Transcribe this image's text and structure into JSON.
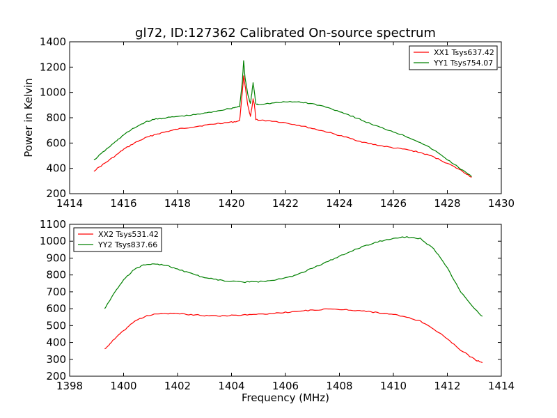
{
  "chart_data": [
    {
      "type": "line",
      "title": "gl72, ID:127362 Calibrated On-source spectrum",
      "xlabel": "",
      "ylabel": "Power in Kelvin",
      "xlim": [
        1414,
        1430
      ],
      "ylim": [
        200,
        1400
      ],
      "xticks": [
        "1414",
        "1416",
        "1418",
        "1420",
        "1422",
        "1424",
        "1426",
        "1428",
        "1430"
      ],
      "yticks": [
        "200",
        "400",
        "600",
        "800",
        "1000",
        "1200",
        "1400"
      ],
      "grid": false,
      "legend_position": "top-right",
      "series": [
        {
          "name": "XX1 Tsys637.42",
          "color": "#ff0000",
          "x": [
            1414.9,
            1415.3,
            1415.7,
            1416.0,
            1416.4,
            1416.8,
            1417.2,
            1417.6,
            1418.0,
            1418.5,
            1419.0,
            1419.5,
            1420.0,
            1420.3,
            1420.4,
            1420.45,
            1420.5,
            1420.6,
            1420.7,
            1420.75,
            1420.8,
            1420.85,
            1420.9,
            1421.0,
            1421.5,
            1422.0,
            1422.5,
            1423.0,
            1423.5,
            1424.0,
            1424.5,
            1425.0,
            1425.5,
            1426.0,
            1426.5,
            1427.0,
            1427.5,
            1428.0,
            1428.5,
            1428.9
          ],
          "values": [
            380,
            440,
            500,
            550,
            600,
            640,
            670,
            690,
            710,
            725,
            740,
            755,
            765,
            775,
            1000,
            1130,
            1060,
            900,
            810,
            870,
            950,
            900,
            790,
            780,
            775,
            760,
            740,
            715,
            690,
            660,
            630,
            600,
            580,
            562,
            548,
            525,
            490,
            440,
            385,
            330
          ]
        },
        {
          "name": "YY1 Tsys754.07",
          "color": "#008000",
          "x": [
            1414.9,
            1415.3,
            1415.7,
            1416.0,
            1416.4,
            1416.8,
            1417.2,
            1417.6,
            1418.0,
            1418.5,
            1419.0,
            1419.5,
            1420.0,
            1420.3,
            1420.4,
            1420.45,
            1420.5,
            1420.6,
            1420.7,
            1420.75,
            1420.8,
            1420.85,
            1420.9,
            1421.0,
            1421.5,
            1422.0,
            1422.5,
            1423.0,
            1423.5,
            1424.0,
            1424.5,
            1425.0,
            1425.5,
            1426.0,
            1426.5,
            1427.0,
            1427.5,
            1428.0,
            1428.5,
            1428.9
          ],
          "values": [
            465,
            540,
            610,
            665,
            720,
            765,
            790,
            800,
            810,
            820,
            835,
            855,
            875,
            890,
            1080,
            1250,
            1120,
            990,
            910,
            990,
            1075,
            1000,
            910,
            905,
            915,
            925,
            925,
            910,
            885,
            850,
            810,
            765,
            725,
            690,
            650,
            605,
            545,
            470,
            395,
            335
          ]
        }
      ]
    },
    {
      "type": "line",
      "title": "",
      "xlabel": "Frequency (MHz)",
      "ylabel": "",
      "xlim": [
        1398,
        1414
      ],
      "ylim": [
        200,
        1100
      ],
      "xticks": [
        "1398",
        "1400",
        "1402",
        "1404",
        "1406",
        "1408",
        "1410",
        "1412",
        "1414"
      ],
      "yticks": [
        "200",
        "300",
        "400",
        "500",
        "600",
        "700",
        "800",
        "900",
        "1000",
        "1100"
      ],
      "grid": false,
      "legend_position": "top-left",
      "series": [
        {
          "name": "XX2 Tsys531.42",
          "color": "#ff0000",
          "x": [
            1399.3,
            1399.6,
            1400.0,
            1400.4,
            1400.8,
            1401.2,
            1401.6,
            1402.0,
            1402.5,
            1403.0,
            1403.5,
            1404.0,
            1404.5,
            1405.0,
            1405.5,
            1406.0,
            1406.5,
            1407.0,
            1407.5,
            1408.0,
            1408.5,
            1409.0,
            1409.5,
            1410.0,
            1410.5,
            1411.0,
            1411.5,
            1412.0,
            1412.5,
            1413.0,
            1413.3
          ],
          "values": [
            360,
            410,
            470,
            525,
            555,
            568,
            572,
            570,
            565,
            560,
            558,
            560,
            563,
            567,
            572,
            578,
            585,
            592,
            596,
            596,
            592,
            585,
            575,
            565,
            550,
            525,
            480,
            420,
            355,
            300,
            280
          ]
        },
        {
          "name": "YY2 Tsys837.66",
          "color": "#008000",
          "x": [
            1399.3,
            1399.6,
            1400.0,
            1400.4,
            1400.8,
            1401.2,
            1401.6,
            1402.0,
            1402.5,
            1403.0,
            1403.5,
            1404.0,
            1404.5,
            1405.0,
            1405.5,
            1406.0,
            1406.5,
            1407.0,
            1407.5,
            1408.0,
            1408.5,
            1409.0,
            1409.5,
            1410.0,
            1410.5,
            1411.0,
            1411.5,
            1412.0,
            1412.5,
            1413.0,
            1413.3
          ],
          "values": [
            600,
            680,
            770,
            835,
            862,
            865,
            855,
            835,
            808,
            785,
            770,
            762,
            758,
            760,
            768,
            782,
            805,
            840,
            875,
            910,
            945,
            975,
            1000,
            1018,
            1025,
            1015,
            955,
            840,
            700,
            600,
            555
          ]
        }
      ]
    }
  ]
}
